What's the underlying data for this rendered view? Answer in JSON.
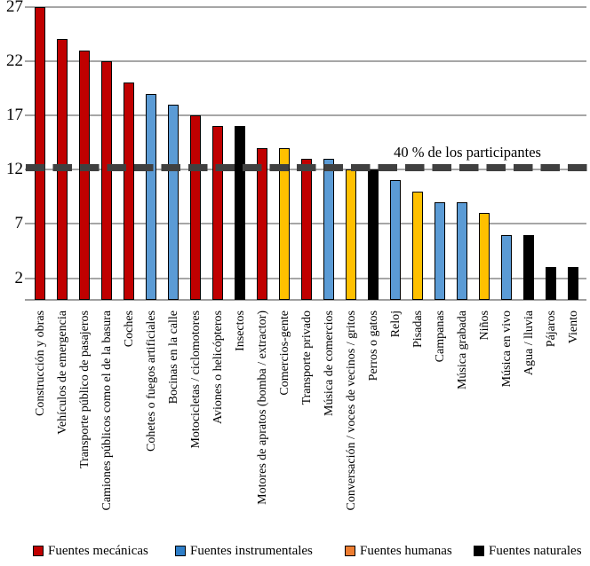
{
  "chart_data": {
    "type": "bar",
    "title": "",
    "xlabel": "",
    "ylabel": "",
    "ylim": [
      0,
      27.5
    ],
    "yticks": [
      2,
      7,
      12,
      17,
      22,
      27
    ],
    "grid": true,
    "legend_position": "bottom",
    "reference_line": {
      "value": 12.2,
      "label": "40 % de los participantes"
    },
    "bar_colors": {
      "mecanicas": "#C00000",
      "instrumentales": "#5B9BD5",
      "humanas": "#FFC000",
      "naturales": "#000000"
    },
    "bars": [
      {
        "label": "Construcción y obras",
        "value": 27,
        "category": "mecanicas"
      },
      {
        "label": "Vehículos de emergencia",
        "value": 24,
        "category": "mecanicas"
      },
      {
        "label": "Transporte público de pasajeros",
        "value": 23,
        "category": "mecanicas"
      },
      {
        "label": "Camiones públicos como el de la basura",
        "value": 22,
        "category": "mecanicas"
      },
      {
        "label": "Coches",
        "value": 20,
        "category": "mecanicas"
      },
      {
        "label": "Cohetes o fuegos artificiales",
        "value": 19,
        "category": "instrumentales"
      },
      {
        "label": "Bocinas en la calle",
        "value": 18,
        "category": "instrumentales"
      },
      {
        "label": "Motocicletas / ciclomotores",
        "value": 17,
        "category": "mecanicas"
      },
      {
        "label": "Aviones o helicópteros",
        "value": 16,
        "category": "mecanicas"
      },
      {
        "label": "Insectos",
        "value": 16,
        "category": "naturales"
      },
      {
        "label": "Motores de apratos (bomba / extractor)",
        "value": 14,
        "category": "mecanicas"
      },
      {
        "label": "Comercios-gente",
        "value": 14,
        "category": "humanas"
      },
      {
        "label": "Transporte privado",
        "value": 13,
        "category": "mecanicas"
      },
      {
        "label": "Música de comercios",
        "value": 13,
        "category": "instrumentales"
      },
      {
        "label": "Conversación / voces de vecinos / gritos",
        "value": 12,
        "category": "humanas"
      },
      {
        "label": "Perros o gatos",
        "value": 12,
        "category": "naturales"
      },
      {
        "label": "Reloj",
        "value": 11,
        "category": "instrumentales"
      },
      {
        "label": "Pisadas",
        "value": 10,
        "category": "humanas"
      },
      {
        "label": "Campanas",
        "value": 9,
        "category": "instrumentales"
      },
      {
        "label": "Música grabada",
        "value": 9,
        "category": "instrumentales"
      },
      {
        "label": "Niños",
        "value": 8,
        "category": "humanas"
      },
      {
        "label": "Música en vivo",
        "value": 6,
        "category": "instrumentales"
      },
      {
        "label": "Agua / lluvia",
        "value": 6,
        "category": "naturales"
      },
      {
        "label": "Pájaros",
        "value": 3,
        "category": "naturales"
      },
      {
        "label": "Viento",
        "value": 3,
        "category": "naturales"
      }
    ],
    "legend": [
      {
        "label": "Fuentes mecánicas",
        "color": "#C00000",
        "category": "mecanicas"
      },
      {
        "label": "Fuentes instrumentales",
        "color": "#2E7EC8",
        "category": "instrumentales"
      },
      {
        "label": "Fuentes humanas",
        "color": "#ED7D31",
        "category": "humanas"
      },
      {
        "label": "Fuentes naturales",
        "color": "#000000",
        "category": "naturales"
      }
    ]
  },
  "colors": {
    "gridline": "#A6A6A6",
    "reference_line": "#404040",
    "background": "#FFFFFF",
    "text": "#000000"
  }
}
